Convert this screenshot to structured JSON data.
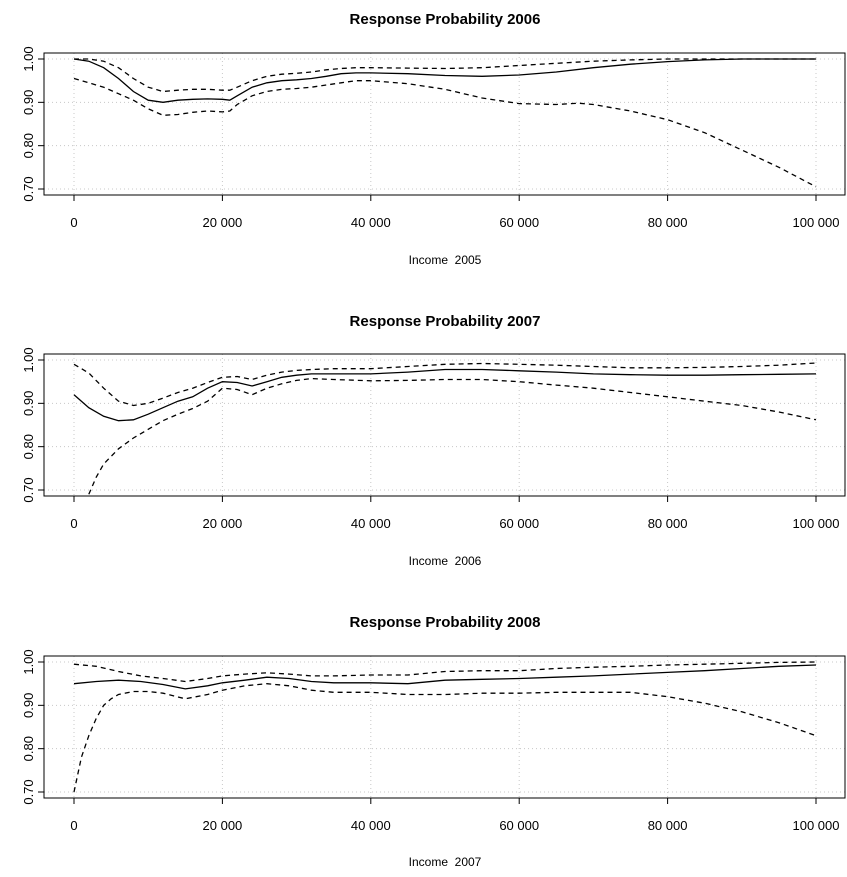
{
  "chart_data": [
    {
      "type": "line",
      "title": "Response Probability 2006",
      "xlabel": "Income  2005",
      "ylabel": "",
      "xlim": [
        0,
        100000
      ],
      "ylim": [
        0.7,
        1.0
      ],
      "x_ticks": [
        0,
        20000,
        40000,
        60000,
        80000,
        100000
      ],
      "x_tick_labels": [
        "0",
        "20 000",
        "40 000",
        "60 000",
        "80 000",
        "100 000"
      ],
      "y_ticks": [
        0.7,
        0.8,
        0.9,
        1.0
      ],
      "y_tick_labels": [
        "0.70",
        "0.80",
        "0.90",
        "1.00"
      ],
      "grid": true,
      "series": [
        {
          "style": "solid",
          "x": [
            0,
            2000,
            4000,
            6000,
            8000,
            10000,
            12000,
            14000,
            16000,
            18000,
            20000,
            21000,
            22000,
            24000,
            26000,
            28000,
            30000,
            32000,
            34000,
            36000,
            38000,
            40000,
            45000,
            50000,
            55000,
            60000,
            65000,
            70000,
            75000,
            80000,
            85000,
            90000,
            95000,
            100000
          ],
          "y": [
            1.0,
            0.995,
            0.98,
            0.955,
            0.925,
            0.905,
            0.9,
            0.905,
            0.907,
            0.908,
            0.907,
            0.905,
            0.915,
            0.935,
            0.945,
            0.95,
            0.952,
            0.955,
            0.96,
            0.966,
            0.968,
            0.968,
            0.966,
            0.962,
            0.96,
            0.963,
            0.97,
            0.98,
            0.988,
            0.994,
            0.998,
            1.0,
            1.0,
            1.0
          ]
        },
        {
          "style": "dashed",
          "x": [
            0,
            2000,
            4000,
            6000,
            8000,
            10000,
            12000,
            14000,
            16000,
            18000,
            20000,
            21000,
            22000,
            24000,
            26000,
            28000,
            30000,
            32000,
            34000,
            36000,
            38000,
            40000,
            45000,
            50000,
            55000,
            60000,
            65000,
            70000,
            75000,
            80000,
            85000,
            90000,
            95000,
            100000
          ],
          "y": [
            1.0,
            1.0,
            0.995,
            0.98,
            0.955,
            0.935,
            0.925,
            0.928,
            0.93,
            0.93,
            0.928,
            0.928,
            0.935,
            0.95,
            0.96,
            0.965,
            0.967,
            0.97,
            0.975,
            0.978,
            0.98,
            0.98,
            0.979,
            0.978,
            0.98,
            0.985,
            0.99,
            0.995,
            0.998,
            1.0,
            1.0,
            1.0,
            1.0,
            1.0
          ]
        },
        {
          "style": "dashed",
          "x": [
            0,
            2000,
            4000,
            6000,
            8000,
            10000,
            12000,
            14000,
            16000,
            18000,
            20000,
            21000,
            22000,
            24000,
            26000,
            28000,
            30000,
            32000,
            34000,
            36000,
            38000,
            40000,
            45000,
            50000,
            55000,
            60000,
            65000,
            68000,
            70000,
            75000,
            80000,
            85000,
            90000,
            95000,
            100000
          ],
          "y": [
            0.955,
            0.945,
            0.935,
            0.92,
            0.905,
            0.885,
            0.87,
            0.872,
            0.877,
            0.88,
            0.878,
            0.88,
            0.895,
            0.915,
            0.925,
            0.93,
            0.932,
            0.935,
            0.94,
            0.945,
            0.95,
            0.95,
            0.943,
            0.93,
            0.91,
            0.897,
            0.895,
            0.898,
            0.895,
            0.88,
            0.86,
            0.83,
            0.79,
            0.75,
            0.705
          ]
        }
      ]
    },
    {
      "type": "line",
      "title": "Response Probability 2007",
      "xlabel": "Income  2006",
      "ylabel": "",
      "xlim": [
        0,
        100000
      ],
      "ylim": [
        0.7,
        1.0
      ],
      "x_ticks": [
        0,
        20000,
        40000,
        60000,
        80000,
        100000
      ],
      "x_tick_labels": [
        "0",
        "20 000",
        "40 000",
        "60 000",
        "80 000",
        "100 000"
      ],
      "y_ticks": [
        0.7,
        0.8,
        0.9,
        1.0
      ],
      "y_tick_labels": [
        "0.70",
        "0.80",
        "0.90",
        "1.00"
      ],
      "grid": true,
      "series": [
        {
          "style": "solid",
          "x": [
            0,
            2000,
            4000,
            6000,
            8000,
            10000,
            12000,
            14000,
            16000,
            18000,
            20000,
            22000,
            24000,
            26000,
            28000,
            30000,
            32000,
            35000,
            40000,
            45000,
            50000,
            55000,
            60000,
            65000,
            70000,
            75000,
            80000,
            85000,
            90000,
            95000,
            100000
          ],
          "y": [
            0.92,
            0.89,
            0.87,
            0.86,
            0.862,
            0.875,
            0.89,
            0.905,
            0.915,
            0.935,
            0.95,
            0.948,
            0.94,
            0.95,
            0.96,
            0.965,
            0.968,
            0.968,
            0.968,
            0.972,
            0.978,
            0.978,
            0.975,
            0.972,
            0.968,
            0.966,
            0.965,
            0.965,
            0.966,
            0.967,
            0.968
          ]
        },
        {
          "style": "dashed",
          "x": [
            0,
            2000,
            4000,
            6000,
            8000,
            10000,
            12000,
            14000,
            16000,
            18000,
            20000,
            22000,
            24000,
            26000,
            28000,
            30000,
            32000,
            35000,
            40000,
            45000,
            50000,
            55000,
            60000,
            65000,
            70000,
            75000,
            80000,
            85000,
            90000,
            95000,
            100000
          ],
          "y": [
            0.99,
            0.97,
            0.935,
            0.905,
            0.895,
            0.9,
            0.912,
            0.925,
            0.935,
            0.948,
            0.96,
            0.962,
            0.955,
            0.965,
            0.972,
            0.976,
            0.978,
            0.98,
            0.98,
            0.985,
            0.99,
            0.992,
            0.99,
            0.988,
            0.985,
            0.982,
            0.982,
            0.983,
            0.985,
            0.988,
            0.993
          ]
        },
        {
          "style": "dashed",
          "x": [
            2000,
            3000,
            4000,
            6000,
            8000,
            10000,
            12000,
            14000,
            16000,
            18000,
            20000,
            22000,
            24000,
            26000,
            28000,
            30000,
            32000,
            35000,
            40000,
            45000,
            50000,
            55000,
            60000,
            65000,
            70000,
            75000,
            80000,
            85000,
            90000,
            95000,
            100000
          ],
          "y": [
            0.69,
            0.73,
            0.76,
            0.795,
            0.82,
            0.84,
            0.86,
            0.875,
            0.888,
            0.905,
            0.935,
            0.932,
            0.92,
            0.935,
            0.945,
            0.953,
            0.957,
            0.955,
            0.952,
            0.953,
            0.955,
            0.955,
            0.95,
            0.942,
            0.935,
            0.925,
            0.915,
            0.905,
            0.895,
            0.88,
            0.862
          ]
        }
      ]
    },
    {
      "type": "line",
      "title": "Response Probability 2008",
      "xlabel": "Income  2007",
      "ylabel": "",
      "xlim": [
        0,
        100000
      ],
      "ylim": [
        0.7,
        1.0
      ],
      "x_ticks": [
        0,
        20000,
        40000,
        60000,
        80000,
        100000
      ],
      "x_tick_labels": [
        "0",
        "20 000",
        "40 000",
        "60 000",
        "80 000",
        "100 000"
      ],
      "y_ticks": [
        0.7,
        0.8,
        0.9,
        1.0
      ],
      "y_tick_labels": [
        "0.70",
        "0.80",
        "0.90",
        "1.00"
      ],
      "grid": true,
      "series": [
        {
          "style": "solid",
          "x": [
            0,
            3000,
            6000,
            9000,
            12000,
            15000,
            18000,
            20000,
            23000,
            26000,
            29000,
            32000,
            35000,
            40000,
            45000,
            50000,
            55000,
            60000,
            65000,
            70000,
            75000,
            80000,
            85000,
            90000,
            95000,
            100000
          ],
          "y": [
            0.95,
            0.955,
            0.958,
            0.955,
            0.948,
            0.938,
            0.945,
            0.952,
            0.958,
            0.965,
            0.962,
            0.955,
            0.952,
            0.952,
            0.95,
            0.958,
            0.96,
            0.962,
            0.965,
            0.968,
            0.972,
            0.976,
            0.98,
            0.985,
            0.99,
            0.993
          ]
        },
        {
          "style": "dashed",
          "x": [
            0,
            3000,
            6000,
            9000,
            12000,
            15000,
            18000,
            20000,
            23000,
            26000,
            29000,
            32000,
            35000,
            40000,
            45000,
            50000,
            55000,
            60000,
            65000,
            70000,
            75000,
            80000,
            85000,
            90000,
            95000,
            100000
          ],
          "y": [
            0.995,
            0.99,
            0.978,
            0.968,
            0.962,
            0.955,
            0.962,
            0.968,
            0.972,
            0.975,
            0.972,
            0.968,
            0.968,
            0.97,
            0.97,
            0.978,
            0.98,
            0.98,
            0.985,
            0.988,
            0.99,
            0.993,
            0.995,
            0.997,
            0.999,
            1.0
          ]
        },
        {
          "style": "dashed",
          "x": [
            0,
            1000,
            2000,
            3000,
            4000,
            5000,
            6000,
            8000,
            10000,
            12000,
            15000,
            18000,
            20000,
            23000,
            26000,
            29000,
            32000,
            35000,
            40000,
            45000,
            50000,
            55000,
            60000,
            65000,
            70000,
            75000,
            80000,
            85000,
            90000,
            95000,
            100000
          ],
          "y": [
            0.7,
            0.78,
            0.83,
            0.87,
            0.9,
            0.915,
            0.925,
            0.932,
            0.932,
            0.928,
            0.915,
            0.925,
            0.935,
            0.945,
            0.95,
            0.945,
            0.935,
            0.93,
            0.93,
            0.925,
            0.925,
            0.928,
            0.928,
            0.93,
            0.93,
            0.93,
            0.92,
            0.905,
            0.885,
            0.86,
            0.83
          ]
        }
      ]
    }
  ]
}
